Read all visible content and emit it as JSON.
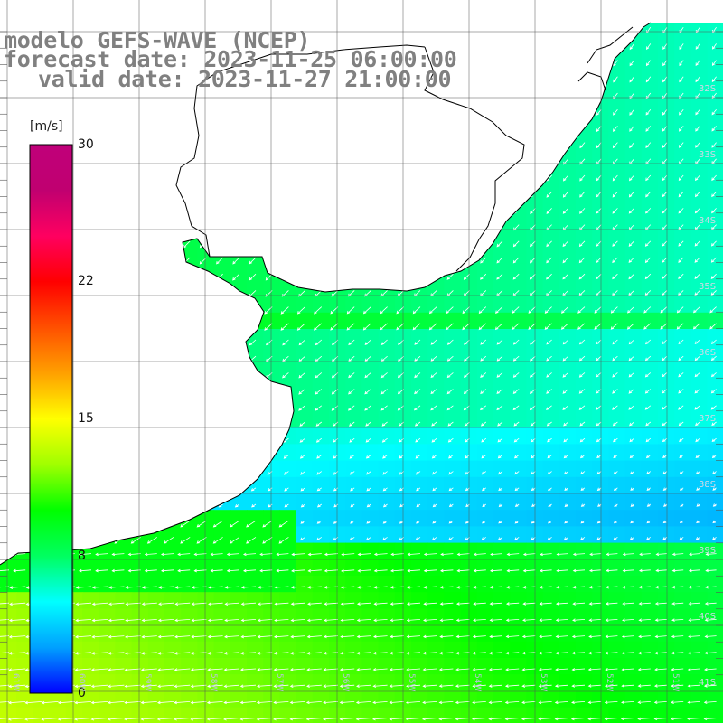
{
  "title": {
    "model": "modelo GEFS-WAVE (NCEP)",
    "forecast_date": "forecast date: 2023-11-25 06:00:00",
    "valid_date": "valid date: 2023-11-27 21:00:00"
  },
  "colorbar": {
    "units": "[m/s]",
    "ticks": [
      {
        "value": 30,
        "label": "30"
      },
      {
        "value": 22,
        "label": "22"
      },
      {
        "value": 15,
        "label": "15"
      },
      {
        "value": 8,
        "label": "8"
      },
      {
        "value": 0,
        "label": "0"
      }
    ],
    "min": 0,
    "max": 30,
    "gradient_stops": [
      "#0000ff",
      "#00a0ff",
      "#00ffff",
      "#00ff60",
      "#00ff00",
      "#a0ff00",
      "#ffff00",
      "#ffa000",
      "#ff5000",
      "#ff0000",
      "#ff0060",
      "#c00070",
      "#c0007a"
    ]
  },
  "map": {
    "lat_labels": [
      "32S",
      "33S",
      "34S",
      "35S",
      "36S",
      "37S",
      "38S",
      "39S",
      "40S",
      "41S"
    ],
    "lon_labels": [
      "61W",
      "60W",
      "59W",
      "58W",
      "57W",
      "56W",
      "55W",
      "54W",
      "53W",
      "52W",
      "51W"
    ],
    "colors": {
      "land": "#ffffff",
      "coastline": "#000000",
      "grid": "#666666",
      "arrows": "#ffffff"
    }
  }
}
